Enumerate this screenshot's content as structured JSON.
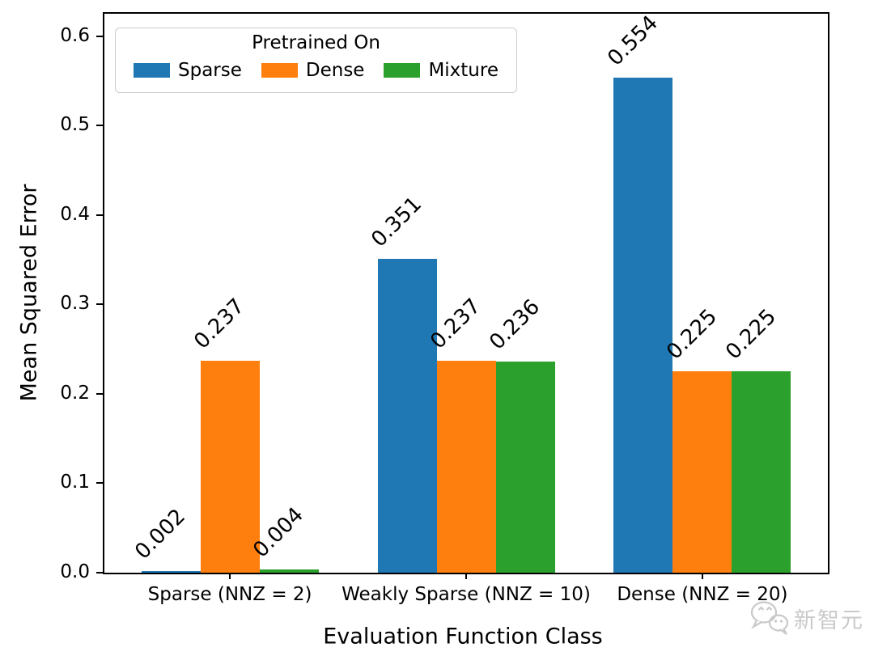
{
  "chart_data": {
    "type": "bar",
    "title": "",
    "xlabel": "Evaluation Function Class",
    "ylabel": "Mean Squared Error",
    "categories": [
      "Sparse (NNZ = 2)",
      "Weakly Sparse (NNZ = 10)",
      "Dense (NNZ = 20)"
    ],
    "series": [
      {
        "name": "Sparse",
        "color": "#1f77b4",
        "values": [
          0.002,
          0.351,
          0.554
        ],
        "value_labels": [
          "0.002",
          "0.351",
          "0.554"
        ]
      },
      {
        "name": "Dense",
        "color": "#ff7f0e",
        "values": [
          0.237,
          0.237,
          0.225
        ],
        "value_labels": [
          "0.237",
          "0.237",
          "0.225"
        ]
      },
      {
        "name": "Mixture",
        "color": "#2ca02c",
        "values": [
          0.004,
          0.236,
          0.225
        ],
        "value_labels": [
          "0.004",
          "0.236",
          "0.225"
        ]
      }
    ],
    "legend": {
      "title": "Pretrained On",
      "position": "upper left",
      "entries": [
        "Sparse",
        "Dense",
        "Mixture"
      ]
    },
    "yticks": [
      "0.0",
      "0.1",
      "0.2",
      "0.3",
      "0.4",
      "0.5",
      "0.6"
    ],
    "ytick_values": [
      0.0,
      0.1,
      0.2,
      0.3,
      0.4,
      0.5,
      0.6
    ],
    "ylim": [
      0,
      0.625
    ],
    "grid": false,
    "bar_value_label_rotation_deg": 45,
    "axis_color": "#000000"
  },
  "watermark": {
    "text": "新智元",
    "color": "#c9c9c9"
  }
}
